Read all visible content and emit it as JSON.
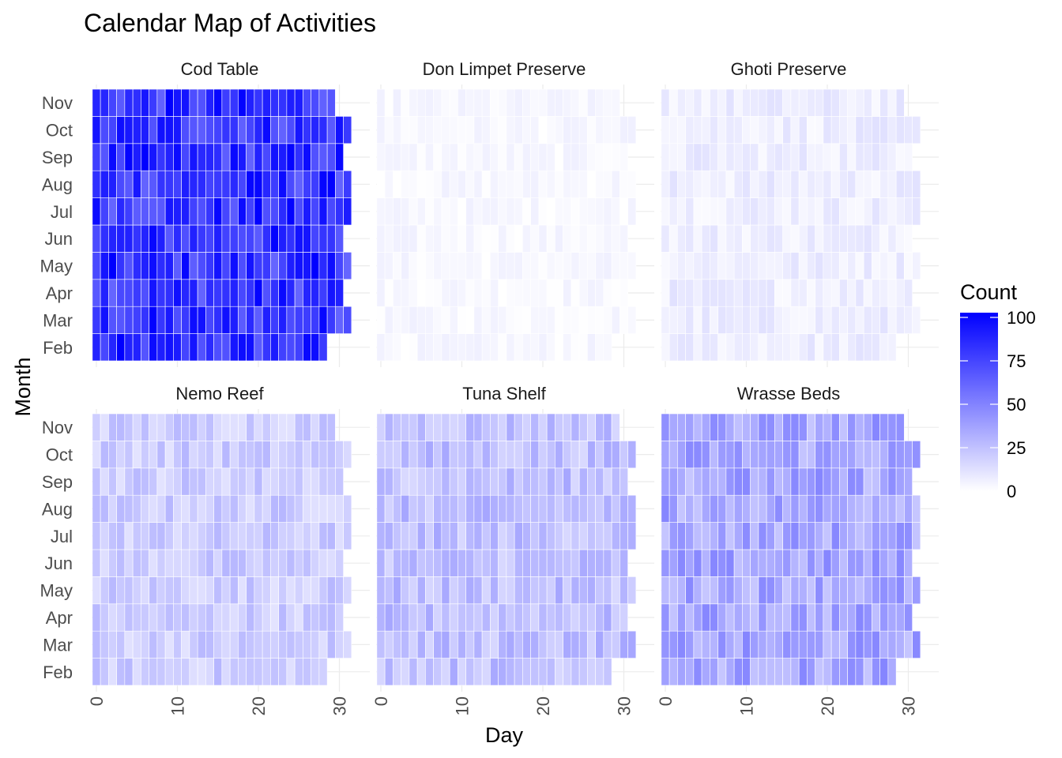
{
  "chart_data": {
    "type": "heatmap",
    "title": "Calendar Map of Activities",
    "xlabel": "Day",
    "ylabel": "Month",
    "x_ticks": [
      0,
      10,
      20,
      30
    ],
    "xlim": [
      0,
      31
    ],
    "months": [
      "Feb",
      "Mar",
      "Apr",
      "May",
      "Jun",
      "Jul",
      "Aug",
      "Sep",
      "Oct",
      "Nov"
    ],
    "days_in_month": {
      "Feb": 28,
      "Mar": 31,
      "Apr": 30,
      "May": 31,
      "Jun": 30,
      "Jul": 31,
      "Aug": 31,
      "Sep": 30,
      "Oct": 31,
      "Nov": 29
    },
    "legend": {
      "title": "Count",
      "ticks": [
        0,
        25,
        50,
        75,
        100
      ],
      "range": [
        0,
        100
      ],
      "low_color": "#ffffff",
      "high_color": "#0000ff",
      "position": "right"
    },
    "grid": true,
    "facets": [
      {
        "name": "Cod Table",
        "typical_count": 80,
        "variation": 20
      },
      {
        "name": "Don Limpet Preserve",
        "typical_count": 3,
        "variation": 3
      },
      {
        "name": "Ghoti Preserve",
        "typical_count": 7,
        "variation": 5
      },
      {
        "name": "Nemo Reef",
        "typical_count": 20,
        "variation": 9
      },
      {
        "name": "Tuna Shelf",
        "typical_count": 25,
        "variation": 10
      },
      {
        "name": "Wrasse Beds",
        "typical_count": 35,
        "variation": 13
      }
    ]
  }
}
